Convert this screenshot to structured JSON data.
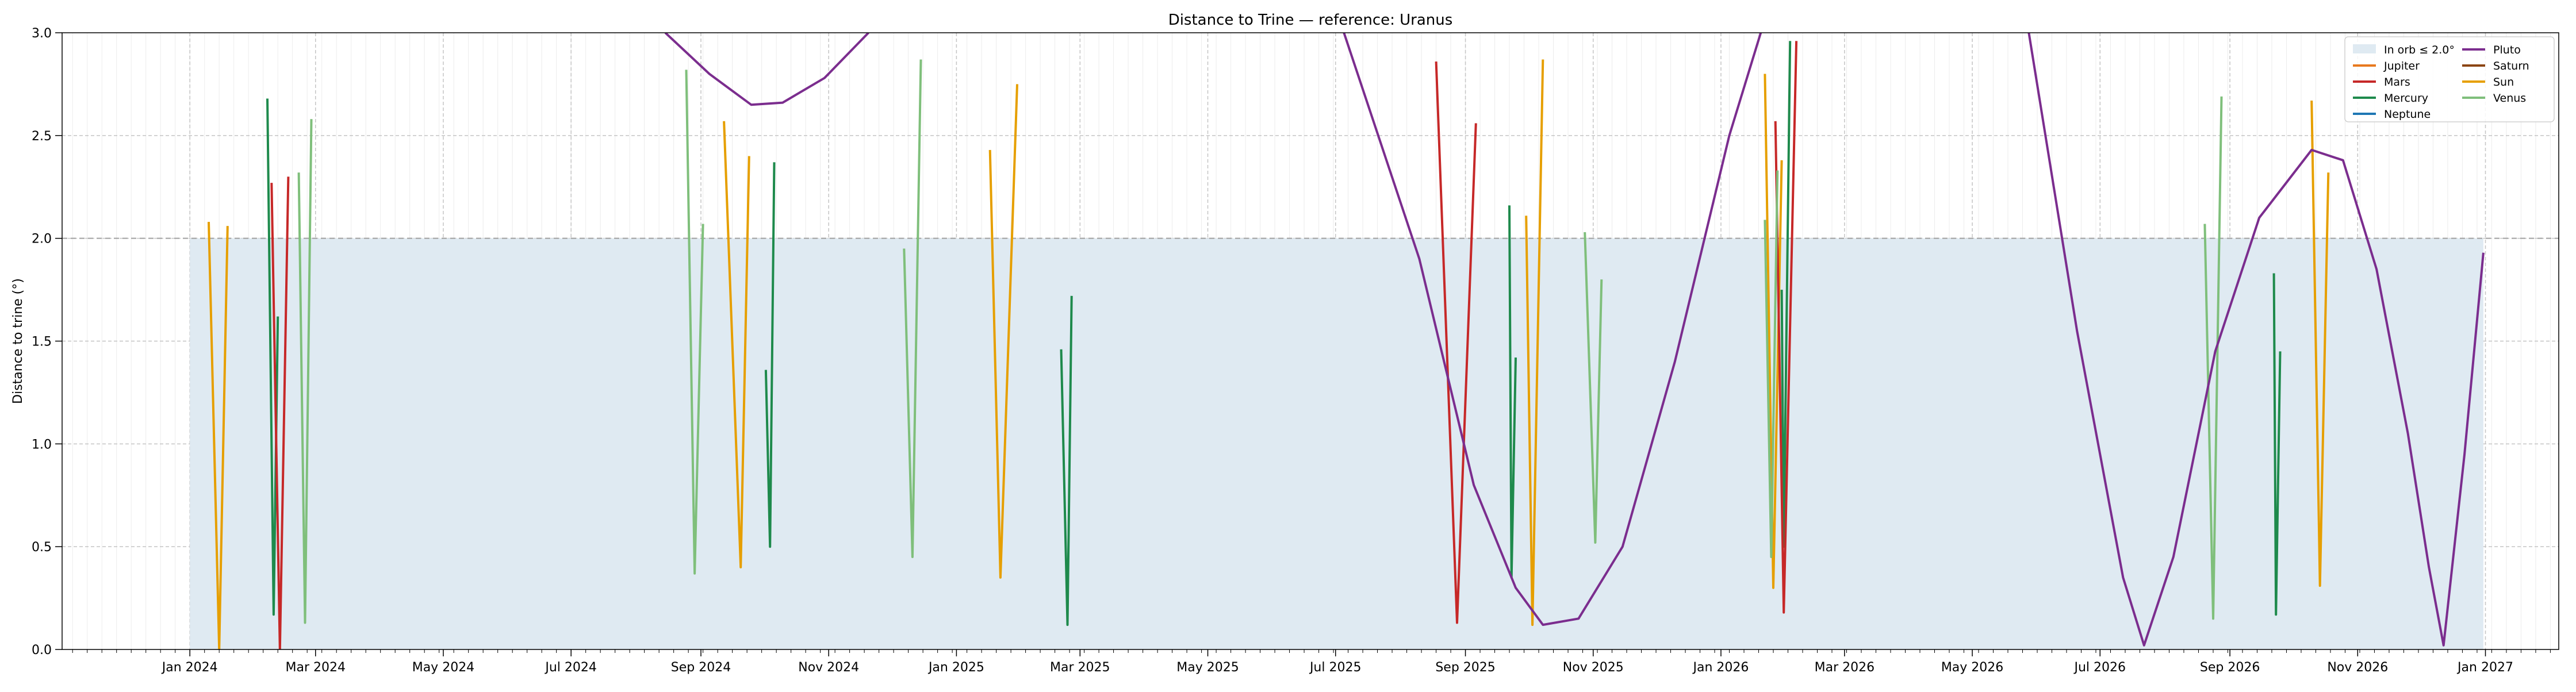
{
  "chart_data": {
    "type": "line",
    "title": "Distance to Trine — reference: Uranus",
    "xlabel": "",
    "ylabel": "Distance to trine (°)",
    "xlim": [
      "2023-11-01",
      "2027-02-05"
    ],
    "ylim": [
      0,
      3.0
    ],
    "yticks": [
      0.0,
      0.5,
      1.0,
      1.5,
      2.0,
      2.5,
      3.0
    ],
    "ytick_labels": [
      "0.0",
      "0.5",
      "1.0",
      "1.5",
      "2.0",
      "2.5",
      "3.0"
    ],
    "xticks": [
      "2024-01-01",
      "2024-03-01",
      "2024-05-01",
      "2024-07-01",
      "2024-09-01",
      "2024-11-01",
      "2025-01-01",
      "2025-03-01",
      "2025-05-01",
      "2025-07-01",
      "2025-09-01",
      "2025-11-01",
      "2026-01-01",
      "2026-03-01",
      "2026-05-01",
      "2026-07-01",
      "2026-09-01",
      "2026-11-01",
      "2027-01-01"
    ],
    "xtick_labels": [
      "Jan 2024",
      "Mar 2024",
      "May 2024",
      "Jul 2024",
      "Sep 2024",
      "Nov 2024",
      "Jan 2025",
      "Mar 2025",
      "May 2025",
      "Jul 2025",
      "Sep 2025",
      "Nov 2025",
      "Jan 2026",
      "Mar 2026",
      "May 2026",
      "Jul 2026",
      "Sep 2026",
      "Nov 2026",
      "Jan 2027"
    ],
    "grid": true,
    "legend_position": "top-right",
    "orb": {
      "label": "In orb ≤ 2.0°",
      "value": 2.0,
      "x_range": [
        "2024-01-01",
        "2026-12-31"
      ],
      "color": "#dfeaf2"
    },
    "legend": [
      {
        "name": "In orb ≤ 2.0°",
        "color": "#dfeaf2",
        "kind": "patch"
      },
      {
        "name": "Jupiter",
        "color": "#e8791e",
        "kind": "line"
      },
      {
        "name": "Mars",
        "color": "#c62828",
        "kind": "line"
      },
      {
        "name": "Mercury",
        "color": "#1e8a4c",
        "kind": "line"
      },
      {
        "name": "Neptune",
        "color": "#1f77b4",
        "kind": "line"
      },
      {
        "name": "Pluto",
        "color": "#7b2d8e",
        "kind": "line"
      },
      {
        "name": "Saturn",
        "color": "#8b4513",
        "kind": "line"
      },
      {
        "name": "Sun",
        "color": "#e69f00",
        "kind": "line"
      },
      {
        "name": "Venus",
        "color": "#7fbf7b",
        "kind": "line"
      }
    ],
    "series": [
      {
        "name": "Sun",
        "color": "#e69f00",
        "points": [
          [
            "2024-01-10",
            2.08
          ],
          [
            "2024-01-15",
            0.0
          ],
          [
            "2024-01-19",
            2.06
          ],
          [
            "2024-09-12",
            2.57
          ],
          [
            "2024-09-20",
            0.4
          ],
          [
            "2024-09-24",
            2.4
          ],
          [
            "2025-01-17",
            2.43
          ],
          [
            "2025-01-22",
            0.35
          ],
          [
            "2025-01-30",
            2.75
          ],
          [
            "2025-09-30",
            2.11
          ],
          [
            "2025-10-03",
            0.12
          ],
          [
            "2025-10-08",
            2.87
          ],
          [
            "2026-01-22",
            2.8
          ],
          [
            "2026-01-26",
            0.3
          ],
          [
            "2026-01-30",
            2.38
          ],
          [
            "2026-10-10",
            2.67
          ],
          [
            "2026-10-14",
            0.31
          ],
          [
            "2026-10-18",
            2.32
          ]
        ]
      },
      {
        "name": "Mercury",
        "color": "#1e8a4c",
        "points": [
          [
            "2024-02-07",
            2.68
          ],
          [
            "2024-02-10",
            0.17
          ],
          [
            "2024-02-12",
            1.62
          ],
          [
            "2024-10-02",
            1.36
          ],
          [
            "2024-10-04",
            0.5
          ],
          [
            "2024-10-06",
            2.37
          ],
          [
            "2025-02-20",
            1.46
          ],
          [
            "2025-02-23",
            0.12
          ],
          [
            "2025-02-25",
            1.72
          ],
          [
            "2025-09-22",
            2.16
          ],
          [
            "2025-09-23",
            0.35
          ],
          [
            "2025-09-25",
            1.42
          ],
          [
            "2026-01-30",
            1.75
          ],
          [
            "2026-01-31",
            0.5
          ],
          [
            "2026-02-03",
            2.96
          ],
          [
            "2026-09-22",
            1.83
          ],
          [
            "2026-09-23",
            0.17
          ],
          [
            "2026-09-25",
            1.45
          ]
        ]
      },
      {
        "name": "Mars",
        "color": "#c62828",
        "points": [
          [
            "2024-02-09",
            2.27
          ],
          [
            "2024-02-13",
            0.0
          ],
          [
            "2024-02-17",
            2.3
          ],
          [
            "2025-08-18",
            2.86
          ],
          [
            "2025-08-28",
            0.13
          ],
          [
            "2025-09-06",
            2.56
          ],
          [
            "2026-01-27",
            2.57
          ],
          [
            "2026-01-31",
            0.18
          ],
          [
            "2026-02-06",
            2.96
          ]
        ]
      },
      {
        "name": "Venus",
        "color": "#7fbf7b",
        "points": [
          [
            "2024-02-22",
            2.32
          ],
          [
            "2024-02-25",
            0.13
          ],
          [
            "2024-02-28",
            2.58
          ],
          [
            "2024-08-25",
            2.82
          ],
          [
            "2024-08-29",
            0.37
          ],
          [
            "2024-09-02",
            2.07
          ],
          [
            "2024-12-07",
            1.95
          ],
          [
            "2024-12-11",
            0.45
          ],
          [
            "2024-12-15",
            2.87
          ],
          [
            "2025-10-28",
            2.03
          ],
          [
            "2025-11-02",
            0.52
          ],
          [
            "2025-11-05",
            1.8
          ],
          [
            "2026-01-22",
            2.09
          ],
          [
            "2026-01-25",
            0.45
          ],
          [
            "2026-01-28",
            2.33
          ],
          [
            "2026-08-20",
            2.07
          ],
          [
            "2026-08-24",
            0.15
          ],
          [
            "2026-08-28",
            2.69
          ]
        ]
      },
      {
        "name": "Pluto",
        "color": "#7b2d8e",
        "points": [
          [
            "2024-08-15",
            3.0
          ],
          [
            "2024-09-05",
            2.8
          ],
          [
            "2024-09-25",
            2.65
          ],
          [
            "2024-10-10",
            2.66
          ],
          [
            "2024-10-30",
            2.78
          ],
          [
            "2024-11-20",
            3.0
          ],
          [
            "2025-07-05",
            3.0
          ],
          [
            "2025-08-10",
            1.9
          ],
          [
            "2025-09-05",
            0.8
          ],
          [
            "2025-09-25",
            0.3
          ],
          [
            "2025-10-08",
            0.12
          ],
          [
            "2025-10-25",
            0.15
          ],
          [
            "2025-11-15",
            0.5
          ],
          [
            "2025-12-10",
            1.4
          ],
          [
            "2026-01-05",
            2.5
          ],
          [
            "2026-01-20",
            3.0
          ],
          [
            "2026-05-28",
            3.0
          ],
          [
            "2026-06-20",
            1.55
          ],
          [
            "2026-07-12",
            0.35
          ],
          [
            "2026-07-22",
            0.02
          ],
          [
            "2026-08-05",
            0.45
          ],
          [
            "2026-08-25",
            1.45
          ],
          [
            "2026-09-15",
            2.1
          ],
          [
            "2026-10-10",
            2.43
          ],
          [
            "2026-10-25",
            2.38
          ],
          [
            "2026-11-10",
            1.85
          ],
          [
            "2026-11-25",
            1.05
          ],
          [
            "2026-12-05",
            0.4
          ],
          [
            "2026-12-12",
            0.02
          ],
          [
            "2026-12-22",
            0.95
          ],
          [
            "2026-12-31",
            1.93
          ]
        ]
      }
    ]
  }
}
